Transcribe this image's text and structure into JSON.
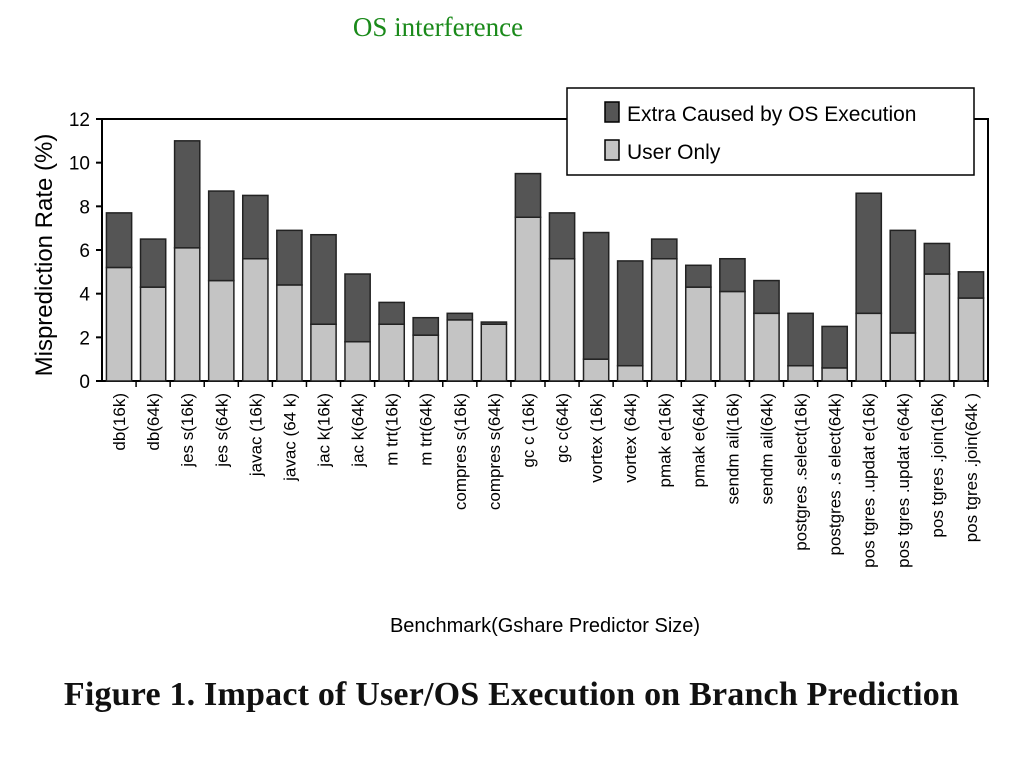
{
  "slide": {
    "title": "OS interference",
    "title_color": "#1a8a1a",
    "caption": "Figure 1. Impact of User/OS Execution on Branch Prediction"
  },
  "chart_data": {
    "type": "bar",
    "stacked": true,
    "title": "",
    "xlabel": "Benchmark(Gshare Predictor Size)",
    "ylabel": "Misprediction Rate (%)",
    "ylim": [
      0,
      12
    ],
    "yticks": [
      0,
      2,
      4,
      6,
      8,
      10,
      12
    ],
    "grid": false,
    "legend_position": "top-right",
    "categories": [
      "db(16k)",
      "db(64k)",
      "jess(16k)",
      "jess(64k)",
      "javac(16k)",
      "javac(64k)",
      "jack(16k)",
      "jack(64k)",
      "mtrt(16k)",
      "mtrt(64k)",
      "compress(16k)",
      "compress(64k)",
      "gcc(16k)",
      "gcc(64k)",
      "vortex(16k)",
      "vortex(64k)",
      "pmake(16k)",
      "pmake(64k)",
      "sendmail(16k)",
      "sendmail(64k)",
      "postgres.select(16k)",
      "postgres.select(64k)",
      "postgres.update(16k)",
      "postgres.update(64k)",
      "postgres.join(16k)",
      "postgres.join(64k)"
    ],
    "category_labels_as_drawn": [
      "db(16k)",
      "db(64k)",
      "jes s(16k)",
      "jes s(64k)",
      "javac (16k)",
      "javac (64 k)",
      "jac k(16k)",
      "jac k(64k)",
      "m trt(16k)",
      "m trt(64k)",
      "compres s(16k)",
      "compres s(64k)",
      "gc c (16k)",
      "gc c(64k)",
      "vortex (16k)",
      "vortex (64k)",
      "pmak e(16k)",
      "pmak e(64k)",
      "sendm ail(16k)",
      "sendm ail(64k)",
      "postgres .select(16k)",
      "postgres .s elect(64k)",
      "pos tgres .updat e(16k)",
      "pos tgres .updat e(64k)",
      "pos tgres .join(16k)",
      "pos tgres .join(64k )"
    ],
    "series": [
      {
        "name": "User Only",
        "color": "#c4c4c4",
        "values": [
          5.2,
          4.3,
          6.1,
          4.6,
          5.6,
          4.4,
          2.6,
          1.8,
          2.6,
          2.1,
          2.8,
          2.6,
          7.5,
          5.6,
          1.0,
          0.7,
          5.6,
          4.3,
          4.1,
          3.1,
          0.7,
          0.6,
          3.1,
          2.2,
          4.9,
          3.8
        ]
      },
      {
        "name": "Extra Caused by OS Execution",
        "color": "#555555",
        "values": [
          2.5,
          2.2,
          4.9,
          4.1,
          2.9,
          2.5,
          4.1,
          3.1,
          1.0,
          0.8,
          0.3,
          0.1,
          2.0,
          2.1,
          5.8,
          4.8,
          0.9,
          1.0,
          1.5,
          1.5,
          2.4,
          1.9,
          5.5,
          4.7,
          1.4,
          1.2
        ]
      }
    ],
    "legend_order": [
      "Extra Caused by OS Execution",
      "User Only"
    ]
  }
}
